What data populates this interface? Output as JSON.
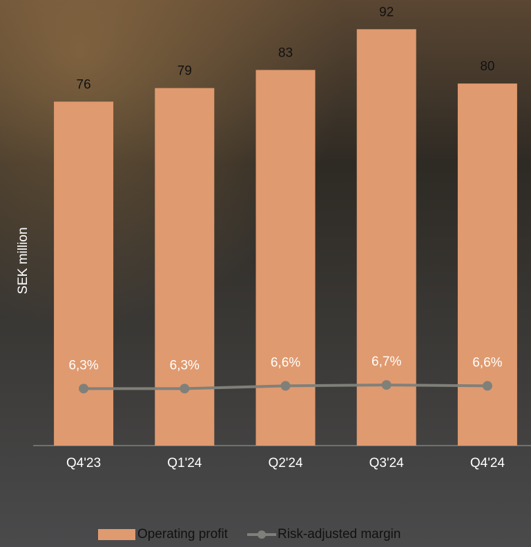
{
  "chart_data": {
    "type": "bar-line",
    "y_label": "SEK million",
    "categories": [
      "Q4'23",
      "Q1'24",
      "Q2'24",
      "Q3'24",
      "Q4'24"
    ],
    "series": [
      {
        "name": "Operating profit",
        "type": "bar",
        "color": "#e09a6f",
        "values": [
          76,
          79,
          83,
          92,
          80
        ]
      },
      {
        "name": "Risk-adjusted margin",
        "type": "line",
        "axis": "y2",
        "color": "#80807a",
        "values": [
          6.3,
          6.3,
          6.6,
          6.7,
          6.6
        ],
        "value_labels": [
          "6,3%",
          "6,3%",
          "6,6%",
          "6,7%",
          "6,6%"
        ]
      }
    ],
    "ylim": [
      0,
      98
    ],
    "y2lim": [
      0,
      49
    ],
    "legend": "bottom"
  }
}
